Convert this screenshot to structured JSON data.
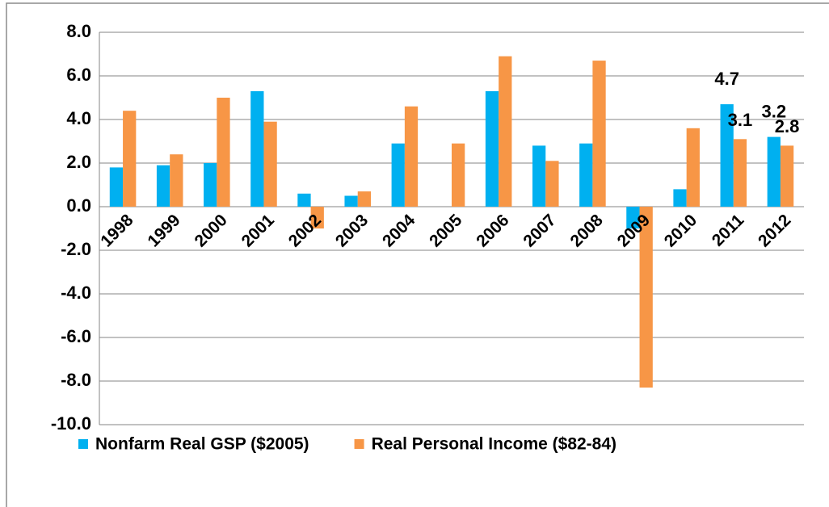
{
  "chart_data": {
    "type": "bar",
    "categories": [
      "1998",
      "1999",
      "2000",
      "2001",
      "2002",
      "2003",
      "2004",
      "2005",
      "2006",
      "2007",
      "2008",
      "2009",
      "2010",
      "2011",
      "2012"
    ],
    "series": [
      {
        "name": "Nonfarm Real GSP ($2005)",
        "color": "#00b0f0",
        "values": [
          1.8,
          1.9,
          2.0,
          5.3,
          0.6,
          0.5,
          2.9,
          null,
          5.3,
          2.8,
          2.9,
          -1.0,
          0.8,
          4.7,
          3.2
        ],
        "value_labels": [
          null,
          null,
          null,
          null,
          null,
          null,
          null,
          null,
          null,
          null,
          null,
          null,
          null,
          "4.7",
          "3.2"
        ]
      },
      {
        "name": "Real Personal Income ($82-84)",
        "color": "#f79646",
        "values": [
          4.4,
          2.4,
          5.0,
          3.9,
          -1.0,
          0.7,
          4.6,
          2.9,
          6.9,
          2.1,
          6.7,
          -8.3,
          3.6,
          3.1,
          2.8
        ],
        "value_labels": [
          null,
          null,
          null,
          null,
          null,
          null,
          null,
          null,
          null,
          null,
          null,
          null,
          null,
          "3.1",
          "2.8"
        ]
      }
    ],
    "ylim": [
      -10,
      8
    ],
    "yticks": [
      {
        "value": -10,
        "label": "-10.0"
      },
      {
        "value": -8,
        "label": "-8.0"
      },
      {
        "value": -6,
        "label": "-6.0"
      },
      {
        "value": -4,
        "label": "-4.0"
      },
      {
        "value": -2,
        "label": "-2.0"
      },
      {
        "value": 0,
        "label": "0.0"
      },
      {
        "value": 2,
        "label": "2.0"
      },
      {
        "value": 4,
        "label": "4.0"
      },
      {
        "value": 6,
        "label": "6.0"
      },
      {
        "value": 8,
        "label": "8.0"
      }
    ],
    "grid": true,
    "legend": "bottom"
  }
}
